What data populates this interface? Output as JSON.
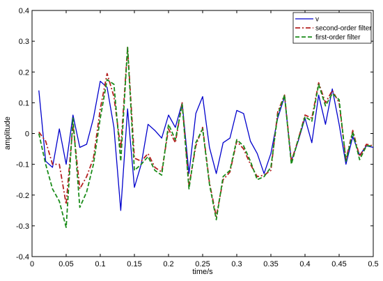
{
  "chart_data": {
    "type": "line",
    "title": "",
    "xlabel": "time/s",
    "ylabel": "amplitude",
    "xlim": [
      0,
      0.5
    ],
    "ylim": [
      -0.4,
      0.4
    ],
    "grid": false,
    "legend_position": "top-right",
    "x_ticks": [
      "0",
      "0.05",
      "0.1",
      "0.15",
      "0.2",
      "0.25",
      "0.3",
      "0.35",
      "0.4",
      "0.45",
      "0.5"
    ],
    "y_ticks": [
      "-0.4",
      "-0.3",
      "-0.2",
      "-0.1",
      "0",
      "0.1",
      "0.2",
      "0.3",
      "0.4"
    ],
    "x": [
      0.01,
      0.02,
      0.03,
      0.04,
      0.05,
      0.06,
      0.07,
      0.08,
      0.09,
      0.1,
      0.11,
      0.12,
      0.13,
      0.14,
      0.15,
      0.16,
      0.17,
      0.18,
      0.19,
      0.2,
      0.21,
      0.22,
      0.23,
      0.24,
      0.25,
      0.26,
      0.27,
      0.28,
      0.29,
      0.3,
      0.31,
      0.32,
      0.33,
      0.34,
      0.35,
      0.36,
      0.37,
      0.38,
      0.39,
      0.4,
      0.41,
      0.42,
      0.43,
      0.44,
      0.45,
      0.46,
      0.47,
      0.48,
      0.49,
      0.5
    ],
    "series": [
      {
        "name": "v",
        "color": "#0000cc",
        "dash": "solid",
        "values": [
          0.14,
          -0.09,
          -0.11,
          0.015,
          -0.1,
          0.06,
          -0.045,
          -0.035,
          0.05,
          0.17,
          0.15,
          0.02,
          -0.25,
          0.08,
          -0.175,
          -0.1,
          0.03,
          0.01,
          -0.015,
          0.06,
          0.02,
          0.1,
          -0.13,
          0.065,
          0.12,
          -0.045,
          -0.13,
          -0.03,
          -0.015,
          0.075,
          0.065,
          -0.025,
          -0.065,
          -0.13,
          -0.065,
          0.05,
          0.12,
          -0.09,
          -0.025,
          0.05,
          -0.03,
          0.125,
          0.03,
          0.145,
          0.03,
          -0.1,
          -0.01,
          -0.07,
          -0.04,
          -0.045
        ]
      },
      {
        "name": "second-order filter",
        "color": "#b52020",
        "dash": "dashdot",
        "values": [
          0.005,
          -0.025,
          -0.1,
          -0.1,
          -0.23,
          0.03,
          -0.18,
          -0.14,
          -0.08,
          0.08,
          0.195,
          0.12,
          -0.05,
          0.28,
          -0.08,
          -0.09,
          -0.065,
          -0.11,
          -0.125,
          0.015,
          -0.03,
          0.1,
          -0.17,
          -0.04,
          0.02,
          -0.16,
          -0.27,
          -0.15,
          -0.125,
          -0.025,
          -0.05,
          -0.1,
          -0.14,
          -0.135,
          -0.12,
          0.07,
          0.125,
          -0.09,
          -0.02,
          0.06,
          0.05,
          0.165,
          0.1,
          0.14,
          0.1,
          -0.085,
          0.01,
          -0.075,
          -0.035,
          -0.04
        ]
      },
      {
        "name": "first-order filter",
        "color": "#1a8c1a",
        "dash": "dashed",
        "values": [
          0.0,
          -0.1,
          -0.18,
          -0.22,
          -0.305,
          0.05,
          -0.24,
          -0.19,
          -0.1,
          0.05,
          0.175,
          0.16,
          -0.09,
          0.28,
          -0.12,
          -0.1,
          -0.075,
          -0.12,
          -0.135,
          0.03,
          -0.02,
          0.095,
          -0.18,
          -0.03,
          0.015,
          -0.165,
          -0.28,
          -0.14,
          -0.12,
          -0.02,
          -0.04,
          -0.09,
          -0.15,
          -0.14,
          -0.11,
          0.06,
          0.125,
          -0.1,
          -0.02,
          0.055,
          0.04,
          0.16,
          0.09,
          0.13,
          0.11,
          -0.09,
          0.005,
          -0.085,
          -0.04,
          -0.04
        ]
      }
    ]
  }
}
